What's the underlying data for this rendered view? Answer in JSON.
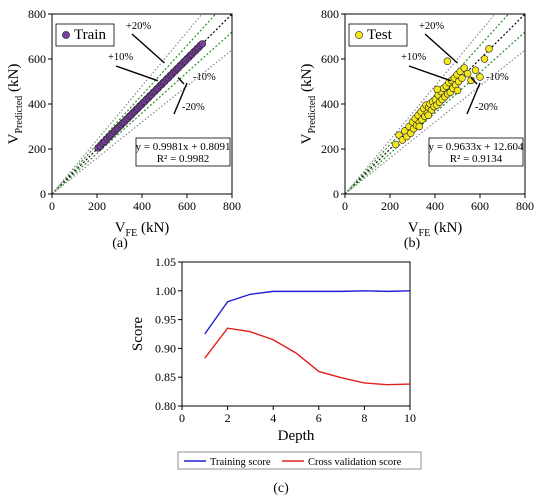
{
  "panels": {
    "a_label": "(a)",
    "b_label": "(b)",
    "c_label": "(c)"
  },
  "chart_data": [
    {
      "type": "scatter",
      "xlabel_main": "V",
      "xlabel_sub": "FE",
      "xlabel_unit": " (kN)",
      "ylabel_main": "V",
      "ylabel_sub": "Predicted",
      "ylabel_unit": " (kN)",
      "xlim": [
        0,
        800
      ],
      "ylim": [
        0,
        800
      ],
      "xticks": [
        "0",
        "200",
        "400",
        "600",
        "800"
      ],
      "yticks": [
        "0",
        "200",
        "400",
        "600",
        "800"
      ],
      "legend": "Train",
      "legend_position": "top-left",
      "marker_color": "#7a3fa0",
      "equation": "y = 0.9981x + 0.8091",
      "r2": "R² = 0.9982",
      "bands": [
        "+20%",
        "+10%",
        "-10%",
        "-20%"
      ],
      "points": [
        [
          205,
          205
        ],
        [
          215,
          213
        ],
        [
          225,
          226
        ],
        [
          235,
          234
        ],
        [
          245,
          246
        ],
        [
          255,
          255
        ],
        [
          262,
          263
        ],
        [
          270,
          271
        ],
        [
          278,
          278
        ],
        [
          285,
          286
        ],
        [
          292,
          292
        ],
        [
          300,
          301
        ],
        [
          308,
          308
        ],
        [
          315,
          316
        ],
        [
          322,
          321
        ],
        [
          330,
          331
        ],
        [
          338,
          337
        ],
        [
          345,
          346
        ],
        [
          352,
          351
        ],
        [
          360,
          361
        ],
        [
          368,
          367
        ],
        [
          375,
          376
        ],
        [
          382,
          381
        ],
        [
          390,
          391
        ],
        [
          398,
          397
        ],
        [
          405,
          406
        ],
        [
          412,
          411
        ],
        [
          420,
          421
        ],
        [
          428,
          427
        ],
        [
          435,
          436
        ],
        [
          442,
          441
        ],
        [
          450,
          451
        ],
        [
          458,
          457
        ],
        [
          465,
          466
        ],
        [
          472,
          471
        ],
        [
          480,
          481
        ],
        [
          488,
          487
        ],
        [
          495,
          496
        ],
        [
          502,
          501
        ],
        [
          510,
          511
        ],
        [
          518,
          517
        ],
        [
          525,
          526
        ],
        [
          532,
          531
        ],
        [
          540,
          541
        ],
        [
          548,
          547
        ],
        [
          555,
          556
        ],
        [
          562,
          561
        ],
        [
          570,
          571
        ],
        [
          578,
          577
        ],
        [
          585,
          586
        ],
        [
          592,
          591
        ],
        [
          600,
          601
        ],
        [
          608,
          607
        ],
        [
          615,
          616
        ],
        [
          622,
          621
        ],
        [
          630,
          631
        ],
        [
          638,
          637
        ],
        [
          645,
          646
        ],
        [
          652,
          651
        ],
        [
          660,
          661
        ],
        [
          668,
          667
        ]
      ]
    },
    {
      "type": "scatter",
      "xlabel_main": "V",
      "xlabel_sub": "FE",
      "xlabel_unit": " (kN)",
      "ylabel_main": "V",
      "ylabel_sub": "Predicted",
      "ylabel_unit": " (kN)",
      "xlim": [
        0,
        800
      ],
      "ylim": [
        0,
        800
      ],
      "xticks": [
        "0",
        "200",
        "400",
        "600",
        "800"
      ],
      "yticks": [
        "0",
        "200",
        "400",
        "600",
        "800"
      ],
      "legend": "Test",
      "legend_position": "top-left",
      "marker_color": "#f5e71e",
      "equation": "y = 0.9633x + 12.604",
      "r2": "R² = 0.9134",
      "bands": [
        "+20%",
        "+10%",
        "-10%",
        "-20%"
      ],
      "points": [
        [
          225,
          220
        ],
        [
          240,
          262
        ],
        [
          255,
          240
        ],
        [
          265,
          280
        ],
        [
          275,
          255
        ],
        [
          285,
          300
        ],
        [
          292,
          270
        ],
        [
          300,
          320
        ],
        [
          305,
          290
        ],
        [
          312,
          335
        ],
        [
          318,
          305
        ],
        [
          325,
          350
        ],
        [
          330,
          318
        ],
        [
          338,
          365
        ],
        [
          342,
          330
        ],
        [
          350,
          380
        ],
        [
          355,
          345
        ],
        [
          360,
          395
        ],
        [
          366,
          360
        ],
        [
          372,
          385
        ],
        [
          378,
          400
        ],
        [
          384,
          372
        ],
        [
          390,
          410
        ],
        [
          396,
          388
        ],
        [
          402,
          420
        ],
        [
          408,
          395
        ],
        [
          414,
          440
        ],
        [
          420,
          408
        ],
        [
          426,
          455
        ],
        [
          432,
          420
        ],
        [
          438,
          470
        ],
        [
          444,
          432
        ],
        [
          450,
          480
        ],
        [
          456,
          445
        ],
        [
          462,
          495
        ],
        [
          468,
          452
        ],
        [
          474,
          505
        ],
        [
          480,
          470
        ],
        [
          486,
          515
        ],
        [
          492,
          485
        ],
        [
          498,
          530
        ],
        [
          505,
          500
        ],
        [
          512,
          545
        ],
        [
          520,
          515
        ],
        [
          530,
          560
        ],
        [
          545,
          535
        ],
        [
          560,
          505
        ],
        [
          580,
          550
        ],
        [
          600,
          520
        ],
        [
          620,
          600
        ],
        [
          640,
          645
        ],
        [
          455,
          590
        ],
        [
          410,
          465
        ],
        [
          370,
          350
        ],
        [
          330,
          300
        ],
        [
          500,
          460
        ]
      ]
    },
    {
      "type": "line",
      "xlabel": "Depth",
      "ylabel": "Score",
      "xlim": [
        0,
        10
      ],
      "ylim": [
        0.8,
        1.05
      ],
      "xticks": [
        "0",
        "2",
        "4",
        "6",
        "8",
        "10"
      ],
      "yticks": [
        "0.80",
        "0.85",
        "0.90",
        "0.95",
        "1.00",
        "1.05"
      ],
      "legend_position": "bottom",
      "x": [
        1,
        2,
        3,
        4,
        5,
        6,
        7,
        8,
        9,
        10
      ],
      "series": [
        {
          "name": "Training score",
          "color": "#1f1fd6",
          "values": [
            0.925,
            0.981,
            0.994,
            0.999,
            0.999,
            0.999,
            0.999,
            1.0,
            0.999,
            1.0
          ]
        },
        {
          "name": "Cross validation score",
          "color": "#e0201b",
          "values": [
            0.883,
            0.935,
            0.929,
            0.915,
            0.892,
            0.86,
            0.849,
            0.84,
            0.837,
            0.838
          ]
        }
      ]
    }
  ]
}
